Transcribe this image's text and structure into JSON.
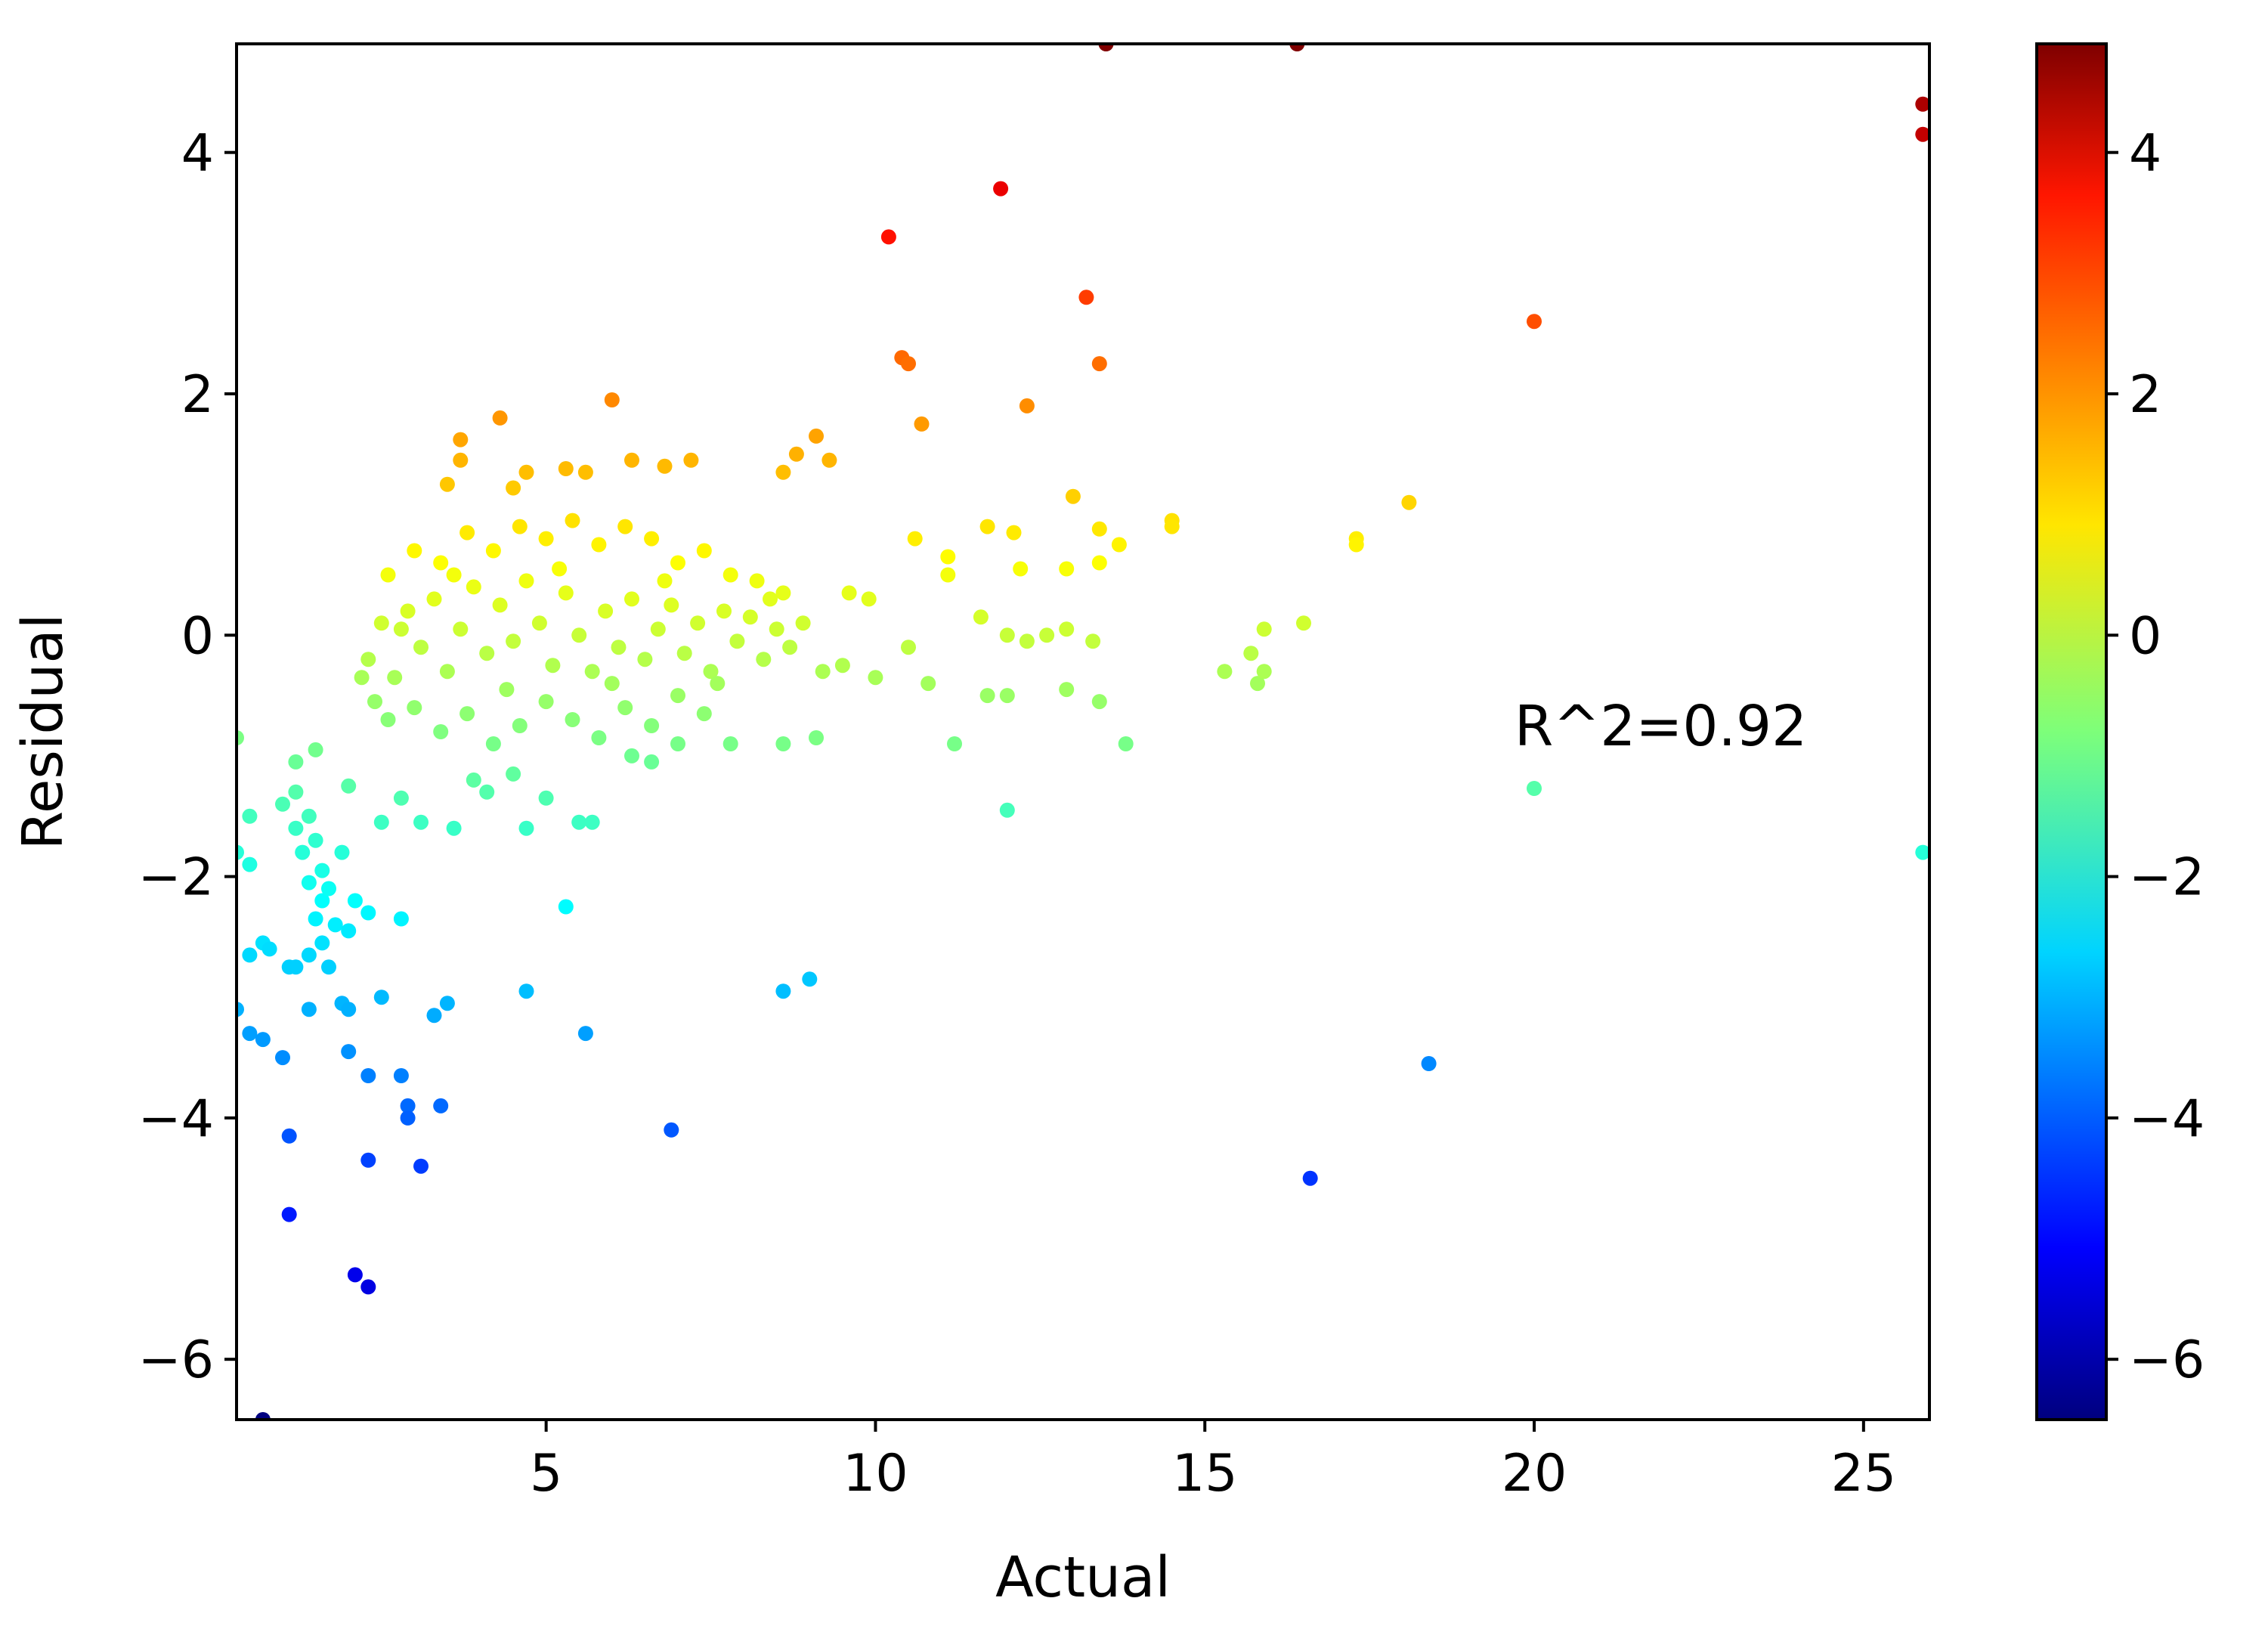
{
  "chart_data": {
    "type": "scatter",
    "xlabel": "Actual",
    "ylabel": "Residual",
    "xlim": [
      0.3,
      26.0
    ],
    "ylim": [
      -6.5,
      4.9
    ],
    "xticks": [
      5,
      10,
      15,
      20,
      25
    ],
    "yticks": [
      -6,
      -4,
      -2,
      0,
      2,
      4
    ],
    "xtick_labels": [
      "5",
      "10",
      "15",
      "20",
      "25"
    ],
    "ytick_labels": [
      "−6",
      "−4",
      "−2",
      "0",
      "2",
      "4"
    ],
    "grid": false,
    "annotation": {
      "text": "R^2=0.92",
      "x": 19.7,
      "y": -0.75
    },
    "colorbar": {
      "colormap": "jet",
      "range": [
        -6.5,
        4.9
      ],
      "ticks": [
        -6,
        -4,
        -2,
        0,
        2,
        4
      ],
      "tick_labels": [
        "−6",
        "−4",
        "−2",
        "0",
        "2",
        "4"
      ]
    },
    "color_by": "y",
    "point_color_note": "points colored by residual value",
    "points": [
      [
        13.5,
        4.9
      ],
      [
        16.4,
        4.9
      ],
      [
        25.9,
        4.4
      ],
      [
        25.9,
        4.15
      ],
      [
        11.9,
        3.7
      ],
      [
        10.2,
        3.3
      ],
      [
        13.2,
        2.8
      ],
      [
        20.0,
        2.6
      ],
      [
        10.4,
        2.3
      ],
      [
        10.5,
        2.25
      ],
      [
        13.4,
        2.25
      ],
      [
        6.0,
        1.95
      ],
      [
        12.3,
        1.9
      ],
      [
        4.3,
        1.8
      ],
      [
        10.7,
        1.75
      ],
      [
        9.1,
        1.65
      ],
      [
        3.7,
        1.62
      ],
      [
        8.8,
        1.5
      ],
      [
        9.3,
        1.45
      ],
      [
        3.7,
        1.45
      ],
      [
        6.3,
        1.45
      ],
      [
        6.8,
        1.4
      ],
      [
        7.2,
        1.45
      ],
      [
        4.7,
        1.35
      ],
      [
        5.3,
        1.38
      ],
      [
        5.6,
        1.35
      ],
      [
        8.6,
        1.35
      ],
      [
        3.5,
        1.25
      ],
      [
        4.5,
        1.22
      ],
      [
        13.0,
        1.15
      ],
      [
        18.1,
        1.1
      ],
      [
        14.5,
        0.95
      ],
      [
        14.5,
        0.9
      ],
      [
        11.7,
        0.9
      ],
      [
        12.1,
        0.85
      ],
      [
        10.6,
        0.8
      ],
      [
        17.3,
        0.8
      ],
      [
        17.3,
        0.75
      ],
      [
        13.4,
        0.88
      ],
      [
        13.7,
        0.75
      ],
      [
        11.1,
        0.65
      ],
      [
        11.1,
        0.5
      ],
      [
        12.2,
        0.55
      ],
      [
        12.9,
        0.55
      ],
      [
        13.4,
        0.6
      ],
      [
        9.6,
        0.35
      ],
      [
        9.9,
        0.3
      ],
      [
        11.6,
        0.15
      ],
      [
        12.0,
        0.0
      ],
      [
        12.3,
        -0.05
      ],
      [
        12.6,
        0.0
      ],
      [
        12.9,
        0.05
      ],
      [
        13.3,
        -0.05
      ],
      [
        15.9,
        0.05
      ],
      [
        16.5,
        0.1
      ],
      [
        15.7,
        -0.15
      ],
      [
        15.3,
        -0.3
      ],
      [
        15.8,
        -0.4
      ],
      [
        15.9,
        -0.3
      ],
      [
        12.0,
        -0.5
      ],
      [
        12.9,
        -0.45
      ],
      [
        13.4,
        -0.55
      ],
      [
        11.7,
        -0.5
      ],
      [
        11.2,
        -0.9
      ],
      [
        13.8,
        -0.9
      ],
      [
        9.1,
        -0.85
      ],
      [
        8.6,
        -0.9
      ],
      [
        12.0,
        -1.45
      ],
      [
        20.0,
        -1.27
      ],
      [
        25.9,
        -1.8
      ],
      [
        5.3,
        -2.25
      ],
      [
        9.0,
        -2.85
      ],
      [
        8.6,
        -2.95
      ],
      [
        4.7,
        -2.95
      ],
      [
        5.6,
        -3.3
      ],
      [
        18.4,
        -3.55
      ],
      [
        6.9,
        -4.1
      ],
      [
        16.6,
        -4.5
      ],
      [
        0.3,
        -0.85
      ],
      [
        0.5,
        -1.5
      ],
      [
        0.5,
        -1.9
      ],
      [
        0.3,
        -1.8
      ],
      [
        0.7,
        -2.55
      ],
      [
        0.8,
        -2.6
      ],
      [
        0.5,
        -2.65
      ],
      [
        1.1,
        -2.75
      ],
      [
        1.2,
        -2.75
      ],
      [
        1.4,
        -2.65
      ],
      [
        1.6,
        -2.55
      ],
      [
        1.7,
        -2.75
      ],
      [
        0.3,
        -3.1
      ],
      [
        0.5,
        -3.3
      ],
      [
        0.7,
        -3.35
      ],
      [
        1.0,
        -3.5
      ],
      [
        1.4,
        -3.1
      ],
      [
        1.9,
        -3.05
      ],
      [
        2.0,
        -3.1
      ],
      [
        2.5,
        -3.0
      ],
      [
        2.8,
        -2.35
      ],
      [
        2.0,
        -3.45
      ],
      [
        3.3,
        -3.15
      ],
      [
        3.5,
        -3.05
      ],
      [
        2.3,
        -3.65
      ],
      [
        2.8,
        -3.65
      ],
      [
        2.9,
        -3.9
      ],
      [
        2.9,
        -4.0
      ],
      [
        3.4,
        -3.9
      ],
      [
        1.1,
        -4.15
      ],
      [
        2.3,
        -4.35
      ],
      [
        3.1,
        -4.4
      ],
      [
        1.1,
        -4.8
      ],
      [
        2.1,
        -5.3
      ],
      [
        2.3,
        -5.4
      ],
      [
        0.7,
        -6.5
      ],
      [
        1.2,
        -1.3
      ],
      [
        1.4,
        -1.5
      ],
      [
        1.2,
        -1.6
      ],
      [
        1.5,
        -1.7
      ],
      [
        1.3,
        -1.8
      ],
      [
        1.6,
        -1.95
      ],
      [
        1.4,
        -2.05
      ],
      [
        1.6,
        -2.2
      ],
      [
        1.5,
        -2.35
      ],
      [
        1.8,
        -2.4
      ],
      [
        2.0,
        -2.45
      ],
      [
        1.7,
        -2.1
      ],
      [
        2.1,
        -2.2
      ],
      [
        2.3,
        -2.3
      ],
      [
        1.9,
        -1.8
      ],
      [
        1.2,
        -1.05
      ],
      [
        1.5,
        -0.95
      ],
      [
        1.0,
        -1.4
      ],
      [
        2.0,
        -1.25
      ],
      [
        2.5,
        -1.55
      ],
      [
        2.8,
        -1.35
      ],
      [
        3.1,
        -1.55
      ],
      [
        3.6,
        -1.6
      ],
      [
        4.1,
        -1.3
      ],
      [
        4.7,
        -1.6
      ],
      [
        5.0,
        -1.35
      ],
      [
        5.5,
        -1.55
      ],
      [
        5.7,
        -1.55
      ],
      [
        3.9,
        -1.2
      ],
      [
        4.5,
        -1.15
      ],
      [
        6.3,
        -1.0
      ],
      [
        7.0,
        -0.9
      ],
      [
        6.6,
        -1.05
      ],
      [
        7.8,
        -0.9
      ],
      [
        2.3,
        -0.2
      ],
      [
        2.5,
        0.1
      ],
      [
        2.7,
        -0.35
      ],
      [
        2.9,
        0.2
      ],
      [
        3.1,
        -0.1
      ],
      [
        3.3,
        0.3
      ],
      [
        3.5,
        -0.3
      ],
      [
        3.7,
        0.05
      ],
      [
        3.9,
        0.4
      ],
      [
        4.1,
        -0.15
      ],
      [
        4.3,
        0.25
      ],
      [
        4.5,
        -0.05
      ],
      [
        4.7,
        0.45
      ],
      [
        4.9,
        0.1
      ],
      [
        5.1,
        -0.25
      ],
      [
        5.3,
        0.35
      ],
      [
        5.5,
        0.0
      ],
      [
        5.7,
        -0.3
      ],
      [
        5.9,
        0.2
      ],
      [
        6.1,
        -0.1
      ],
      [
        6.3,
        0.3
      ],
      [
        6.5,
        -0.2
      ],
      [
        6.7,
        0.05
      ],
      [
        6.9,
        0.25
      ],
      [
        7.1,
        -0.15
      ],
      [
        7.3,
        0.1
      ],
      [
        7.5,
        -0.3
      ],
      [
        7.7,
        0.2
      ],
      [
        7.9,
        -0.05
      ],
      [
        8.1,
        0.15
      ],
      [
        8.3,
        -0.2
      ],
      [
        8.5,
        0.05
      ],
      [
        8.7,
        -0.1
      ],
      [
        8.9,
        0.1
      ],
      [
        9.2,
        -0.3
      ],
      [
        9.5,
        -0.25
      ],
      [
        10.0,
        -0.35
      ],
      [
        10.5,
        -0.1
      ],
      [
        10.8,
        -0.4
      ],
      [
        2.4,
        -0.55
      ],
      [
        2.6,
        -0.7
      ],
      [
        3.0,
        -0.6
      ],
      [
        3.4,
        -0.8
      ],
      [
        3.8,
        -0.65
      ],
      [
        4.2,
        -0.9
      ],
      [
        4.6,
        -0.75
      ],
      [
        5.0,
        -0.55
      ],
      [
        5.4,
        -0.7
      ],
      [
        5.8,
        -0.85
      ],
      [
        6.2,
        -0.6
      ],
      [
        6.6,
        -0.75
      ],
      [
        7.0,
        -0.5
      ],
      [
        7.4,
        -0.65
      ],
      [
        2.6,
        0.5
      ],
      [
        3.0,
        0.7
      ],
      [
        3.4,
        0.6
      ],
      [
        3.8,
        0.85
      ],
      [
        4.2,
        0.7
      ],
      [
        4.6,
        0.9
      ],
      [
        5.0,
        0.8
      ],
      [
        5.4,
        0.95
      ],
      [
        5.8,
        0.75
      ],
      [
        6.2,
        0.9
      ],
      [
        6.6,
        0.8
      ],
      [
        7.0,
        0.6
      ],
      [
        7.4,
        0.7
      ],
      [
        7.8,
        0.5
      ],
      [
        8.2,
        0.45
      ],
      [
        8.6,
        0.35
      ],
      [
        2.2,
        -0.35
      ],
      [
        2.8,
        0.05
      ],
      [
        3.6,
        0.5
      ],
      [
        4.4,
        -0.45
      ],
      [
        5.2,
        0.55
      ],
      [
        6.0,
        -0.4
      ],
      [
        6.8,
        0.45
      ],
      [
        7.6,
        -0.4
      ],
      [
        8.4,
        0.3
      ]
    ]
  }
}
